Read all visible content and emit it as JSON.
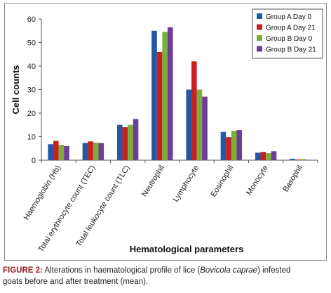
{
  "chart_data": {
    "type": "bar",
    "categories": [
      "Haemoglobin (Hb)",
      "Total erythrocyte count (TEC)",
      "Total leukocyte count (TLC)",
      "Neutrophil",
      "Lymphocyte",
      "Eosinophil",
      "Monocyte",
      "Basophil"
    ],
    "series": [
      {
        "name": "Group A Day 0",
        "color": "#2457a6",
        "values": [
          6.8,
          7.3,
          15.0,
          55.0,
          30.0,
          12.0,
          3.2,
          0.6
        ]
      },
      {
        "name": "Group A Day 21",
        "color": "#c8201f",
        "values": [
          8.2,
          8.0,
          14.0,
          46.0,
          42.0,
          9.8,
          3.5,
          0.3
        ]
      },
      {
        "name": "Group B Day 0",
        "color": "#7cae3b",
        "values": [
          6.5,
          7.5,
          15.0,
          54.5,
          30.0,
          12.5,
          3.0,
          0.5
        ]
      },
      {
        "name": "Group B Day 21",
        "color": "#6d3e98",
        "values": [
          6.0,
          7.3,
          17.5,
          56.5,
          27.0,
          12.8,
          3.8,
          0.2
        ]
      }
    ],
    "title": "",
    "xlabel": "Hematological parameters",
    "ylabel": "Cell counts",
    "ylim": [
      0,
      60
    ],
    "yticks": [
      0,
      10,
      20,
      30,
      40,
      50,
      60
    ],
    "grid": false,
    "legend_position": "top-right"
  },
  "caption": {
    "label": "FIGURE 2:",
    "text_before_italic": " Alterations in haematological profile of lice (",
    "italic": "Bovicola caprae",
    "text_after_italic": ") infested",
    "line2": "goats before and after treatment (mean)."
  }
}
